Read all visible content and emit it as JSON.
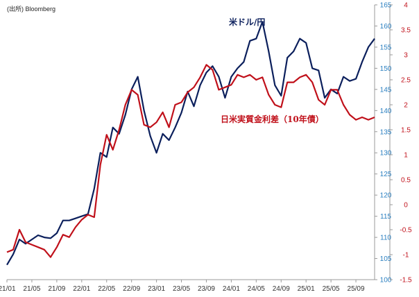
{
  "source_note": "(出所) Bloomberg",
  "colors": {
    "usdjpy": "#0b1f5c",
    "rate": "#c0101a",
    "left_tick": "#2a7fc0",
    "right_tick": "#c0101a",
    "axis": "#999999",
    "grid": "#d9d9d9"
  },
  "chart_data": {
    "type": "line",
    "title": "",
    "xlabel": "",
    "x_ticks": [
      "21/01",
      "21/05",
      "21/09",
      "22/01",
      "22/05",
      "22/09",
      "23/01",
      "23/05",
      "23/09",
      "24/01",
      "24/05",
      "24/09",
      "25/01",
      "25/05",
      "25/09"
    ],
    "x_range": [
      "21/01",
      "25/12"
    ],
    "left_axis": {
      "ylim": [
        100,
        165
      ],
      "ticks": [
        "100",
        "105",
        "110",
        "115",
        "120",
        "125",
        "130",
        "135",
        "140",
        "145",
        "150",
        "155",
        "160",
        "165"
      ]
    },
    "right_axis": {
      "ylim": [
        -1.5,
        4
      ],
      "ticks": [
        "-1.5",
        "-1",
        "-0.5",
        "0",
        "0.5",
        "1",
        "1.5",
        "2",
        "2.5",
        "3",
        "3.5",
        "4"
      ]
    },
    "grid": false,
    "series": [
      {
        "name": "米ドル/円",
        "axis": "left",
        "color": "#0b1f5c",
        "x": [
          "21/01",
          "21/02",
          "21/03",
          "21/04",
          "21/05",
          "21/06",
          "21/07",
          "21/08",
          "21/09",
          "21/10",
          "21/11",
          "21/12",
          "22/01",
          "22/02",
          "22/03",
          "22/04",
          "22/05",
          "22/06",
          "22/07",
          "22/08",
          "22/09",
          "22/10",
          "22/11",
          "22/12",
          "23/01",
          "23/02",
          "23/03",
          "23/04",
          "23/05",
          "23/06",
          "23/07",
          "23/08",
          "23/09",
          "23/10",
          "23/11",
          "23/12",
          "24/01",
          "24/02",
          "24/03",
          "24/04",
          "24/05",
          "24/06",
          "24/07",
          "24/08",
          "24/09",
          "24/10",
          "24/11",
          "24/12",
          "25/01",
          "25/02",
          "25/03",
          "25/04",
          "25/05",
          "25/06",
          "25/07",
          "25/08",
          "25/09",
          "25/10",
          "25/11",
          "25/12"
        ],
        "values": [
          103.5,
          106.0,
          109.5,
          108.5,
          109.5,
          110.5,
          110.0,
          109.8,
          111.0,
          114.0,
          114.0,
          114.5,
          115.0,
          115.5,
          121.5,
          130.0,
          129.0,
          136.0,
          134.5,
          139.0,
          145.0,
          148.0,
          140.0,
          134.0,
          130.0,
          134.5,
          133.0,
          136.0,
          139.5,
          144.5,
          141.0,
          146.0,
          149.0,
          150.5,
          148.0,
          143.0,
          148.0,
          150.0,
          151.5,
          156.5,
          157.0,
          161.0,
          154.0,
          146.0,
          143.5,
          152.5,
          154.0,
          157.0,
          156.0,
          150.0,
          149.5,
          143.0,
          145.0,
          144.0,
          148.0,
          147.0,
          147.5,
          151.5,
          155.0,
          157.0
        ]
      },
      {
        "name": "日米実質金利差（10年債）",
        "axis": "right",
        "color": "#c0101a",
        "x": [
          "21/01",
          "21/02",
          "21/03",
          "21/04",
          "21/05",
          "21/06",
          "21/07",
          "21/08",
          "21/09",
          "21/10",
          "21/11",
          "21/12",
          "22/01",
          "22/02",
          "22/03",
          "22/04",
          "22/05",
          "22/06",
          "22/07",
          "22/08",
          "22/09",
          "22/10",
          "22/11",
          "22/12",
          "23/01",
          "23/02",
          "23/03",
          "23/04",
          "23/05",
          "23/06",
          "23/07",
          "23/08",
          "23/09",
          "23/10",
          "23/11",
          "23/12",
          "24/01",
          "24/02",
          "24/03",
          "24/04",
          "24/05",
          "24/06",
          "24/07",
          "24/08",
          "24/09",
          "24/10",
          "24/11",
          "24/12",
          "25/01",
          "25/02",
          "25/03",
          "25/04",
          "25/05",
          "25/06",
          "25/07",
          "25/08",
          "25/09",
          "25/10",
          "25/11",
          "25/12"
        ],
        "values": [
          -0.95,
          -0.9,
          -0.5,
          -0.75,
          -0.8,
          -0.85,
          -0.9,
          -1.05,
          -0.85,
          -0.6,
          -0.65,
          -0.45,
          -0.3,
          -0.2,
          -0.25,
          0.8,
          1.4,
          1.1,
          1.5,
          2.0,
          2.3,
          2.2,
          1.6,
          1.55,
          1.65,
          1.85,
          1.55,
          2.0,
          2.05,
          2.25,
          2.35,
          2.55,
          2.8,
          2.7,
          2.3,
          2.35,
          2.4,
          2.6,
          2.55,
          2.6,
          2.5,
          2.55,
          2.2,
          2.0,
          1.95,
          2.45,
          2.45,
          2.55,
          2.6,
          2.45,
          2.1,
          2.0,
          2.3,
          2.3,
          2.0,
          1.8,
          1.7,
          1.75,
          1.7,
          1.75
        ]
      }
    ],
    "annotations": [
      {
        "text": "米ドル/円",
        "series": 0
      },
      {
        "text": "日米実質金利差（10年債）",
        "series": 1
      }
    ]
  }
}
